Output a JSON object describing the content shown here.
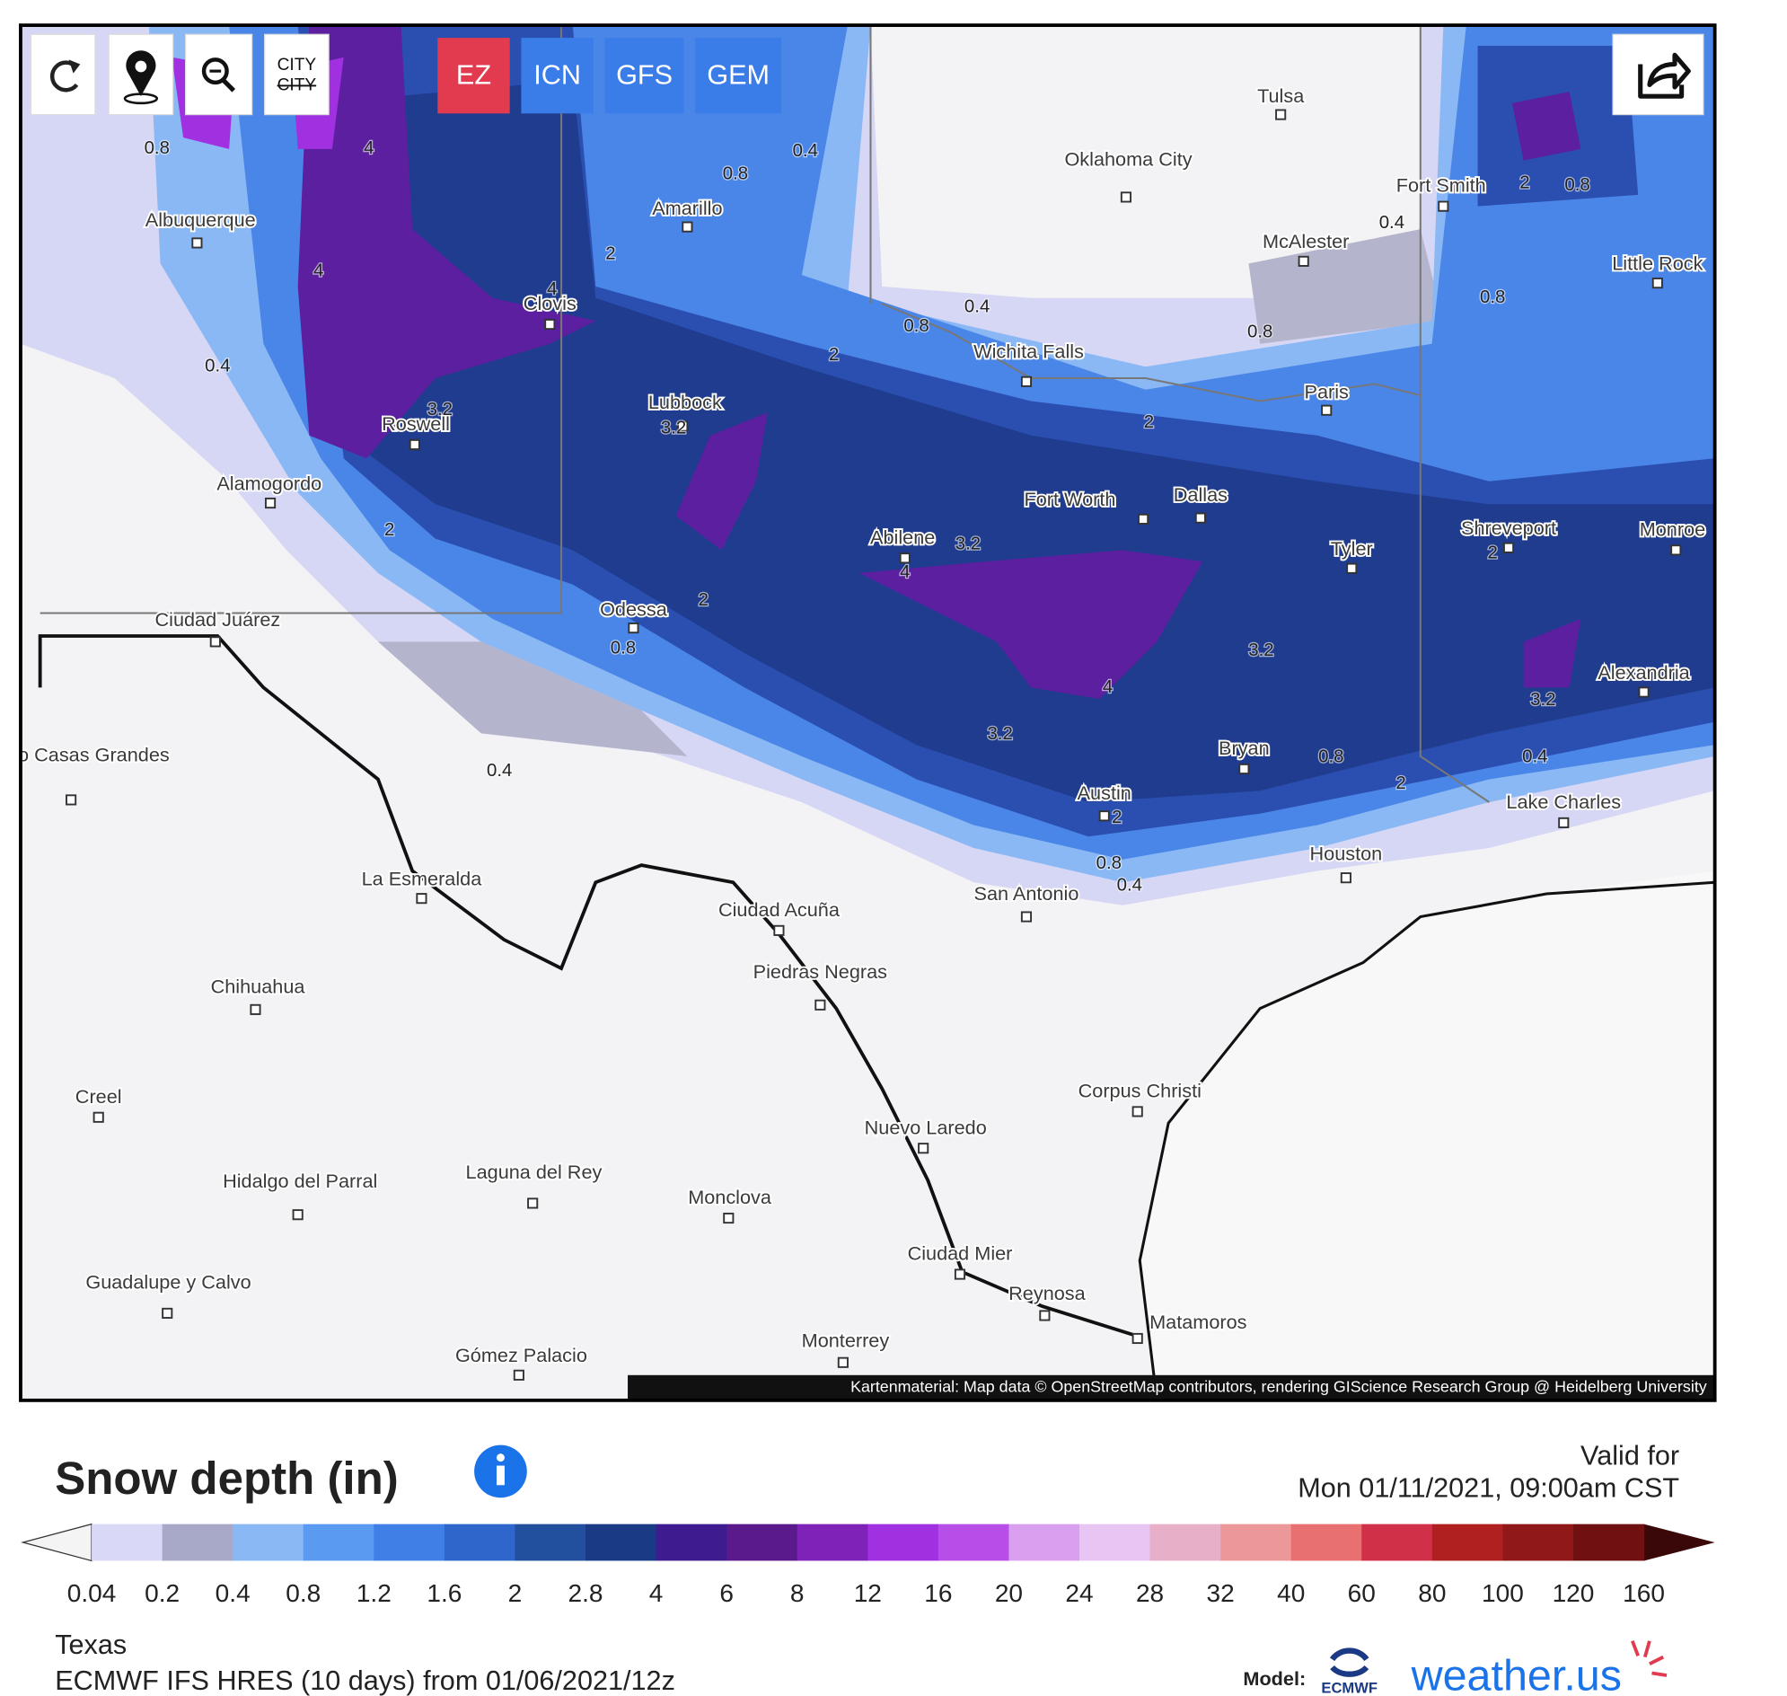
{
  "toolbar": {
    "city_button": "CITY",
    "city_button_struck": "CITY",
    "models": [
      "EZ",
      "ICN",
      "GFS",
      "GEM"
    ],
    "active_model": "EZ"
  },
  "map": {
    "cities": [
      "Tulsa",
      "Oklahoma City",
      "Fort Smith",
      "McAlester",
      "Little Rock",
      "Albuquerque",
      "Amarillo",
      "Clovis",
      "Wichita Falls",
      "Paris",
      "Lubbock",
      "Roswell",
      "Alamogordo",
      "Fort Worth",
      "Dallas",
      "Tyler",
      "Shreveport",
      "Monroe",
      "Abilene",
      "Odessa",
      "Ciudad Juárez",
      "Alexandria",
      "Nuevo Casas Grandes",
      "Bryan",
      "Austin",
      "Lake Charles",
      "Houston",
      "La Esmeralda",
      "San Antonio",
      "Ciudad Acuña",
      "Piedras Negras",
      "Chihuahua",
      "Corpus Christi",
      "Creel",
      "Nuevo Laredo",
      "Hidalgo del Parral",
      "Laguna del Rey",
      "Monclova",
      "Ciudad Mier",
      "Guadalupe y Calvo",
      "Reynosa",
      "Matamoros",
      "Monterrey",
      "Gómez Palacio"
    ],
    "contour_labels": [
      0.8,
      4,
      0.4,
      0.8,
      2,
      0.8,
      0.4,
      4,
      2,
      4,
      0.4,
      0.8,
      0.4,
      0.8,
      0.8,
      2,
      3.2,
      3.2,
      2,
      2,
      3.2,
      4,
      2,
      0.8,
      3.2,
      2,
      4,
      3.2,
      3.2,
      0.4,
      0.8,
      0.4,
      2,
      2,
      0.8,
      0.4
    ],
    "attribution": "Kartenmaterial: Map data © OpenStreetMap contributors, rendering GIScience Research Group @ Heidelberg University"
  },
  "legend": {
    "title": "Snow depth (in)",
    "ticks": [
      0.04,
      0.2,
      0.4,
      0.8,
      1.2,
      1.6,
      2,
      2.8,
      4,
      6,
      8,
      12,
      16,
      20,
      24,
      28,
      32,
      40,
      60,
      80,
      100,
      120,
      160
    ],
    "colors": [
      "#d9d9f7",
      "#a8a8c8",
      "#8ab8f5",
      "#5a9af0",
      "#3f7fe6",
      "#2e66cc",
      "#22509e",
      "#1a3a85",
      "#3e1c8f",
      "#5a1a8c",
      "#7e22b8",
      "#a030e0",
      "#b84ee8",
      "#d9a0f0",
      "#e8c6f4",
      "#e8b0c8",
      "#ec9898",
      "#e87070",
      "#d03048",
      "#b02020",
      "#901818",
      "#701010"
    ],
    "under_color": "#f4f4f4",
    "over_color": "#3a0808"
  },
  "valid": {
    "label": "Valid for",
    "time": "Mon 01/11/2021, 09:00am CST"
  },
  "footer": {
    "region": "Texas",
    "run": "ECMWF IFS HRES (10 days) from 01/06/2021/12z",
    "model_label": "Model:",
    "ecmwf": "ECMWF",
    "brand": "weather.us"
  }
}
